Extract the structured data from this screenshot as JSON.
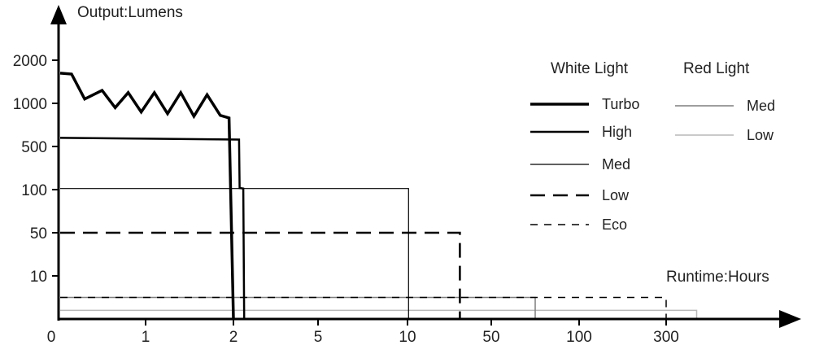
{
  "chart_data": {
    "type": "line",
    "title": "",
    "ylabel": "Output:Lumens",
    "xlabel": "Runtime:Hours",
    "x_scale": "categorical (non-linear)",
    "x_ticks": [
      "0",
      "1",
      "2",
      "5",
      "10",
      "50",
      "100",
      "300"
    ],
    "y_ticks": [
      "2000",
      "1000",
      "500",
      "100",
      "50",
      "10"
    ],
    "legend": {
      "placement": "top-right",
      "groups": [
        {
          "title": "White Light",
          "entries": [
            "Turbo",
            "High",
            "Med",
            "Low",
            "Eco"
          ]
        },
        {
          "title": "Red Light",
          "entries": [
            "Med",
            "Low"
          ]
        }
      ]
    },
    "series": [
      {
        "name": "Turbo",
        "group": "White Light",
        "style": "thick-solid",
        "points": [
          [
            0,
            1700
          ],
          [
            0.15,
            1680
          ],
          [
            0.3,
            1100
          ],
          [
            0.5,
            1300
          ],
          [
            0.65,
            950
          ],
          [
            0.8,
            1250
          ],
          [
            0.95,
            900
          ],
          [
            1.1,
            1250
          ],
          [
            1.25,
            880
          ],
          [
            1.4,
            1250
          ],
          [
            1.55,
            850
          ],
          [
            1.7,
            1200
          ],
          [
            1.85,
            860
          ],
          [
            1.95,
            830
          ],
          [
            2.0,
            0
          ]
        ]
      },
      {
        "name": "High",
        "group": "White Light",
        "style": "medium-solid",
        "points": [
          [
            0,
            600
          ],
          [
            2.2,
            580
          ],
          [
            2.22,
            115
          ],
          [
            2.35,
            110
          ],
          [
            2.38,
            0
          ]
        ]
      },
      {
        "name": "Med",
        "group": "White Light",
        "style": "thin-solid",
        "points": [
          [
            0,
            110
          ],
          [
            10.5,
            110
          ],
          [
            10.5,
            0
          ]
        ]
      },
      {
        "name": "Low",
        "group": "White Light",
        "style": "long-dash",
        "points": [
          [
            0,
            50
          ],
          [
            35,
            50
          ],
          [
            35,
            0
          ]
        ]
      },
      {
        "name": "Eco",
        "group": "White Light",
        "style": "short-dash",
        "points": [
          [
            0,
            5
          ],
          [
            300,
            5
          ],
          [
            300,
            0
          ]
        ]
      },
      {
        "name": "Med",
        "group": "Red Light",
        "style": "thin-gray",
        "points": [
          [
            0,
            5
          ],
          [
            75,
            5
          ],
          [
            75,
            0
          ]
        ]
      },
      {
        "name": "Low",
        "group": "Red Light",
        "style": "thin-lightgray",
        "points": [
          [
            0,
            2
          ],
          [
            370,
            2
          ],
          [
            370,
            0
          ]
        ]
      }
    ]
  },
  "colors": {
    "axis": "#000000",
    "white_light": "#000000",
    "red_med": "#7f7f7f",
    "red_low": "#b8b8b8"
  }
}
